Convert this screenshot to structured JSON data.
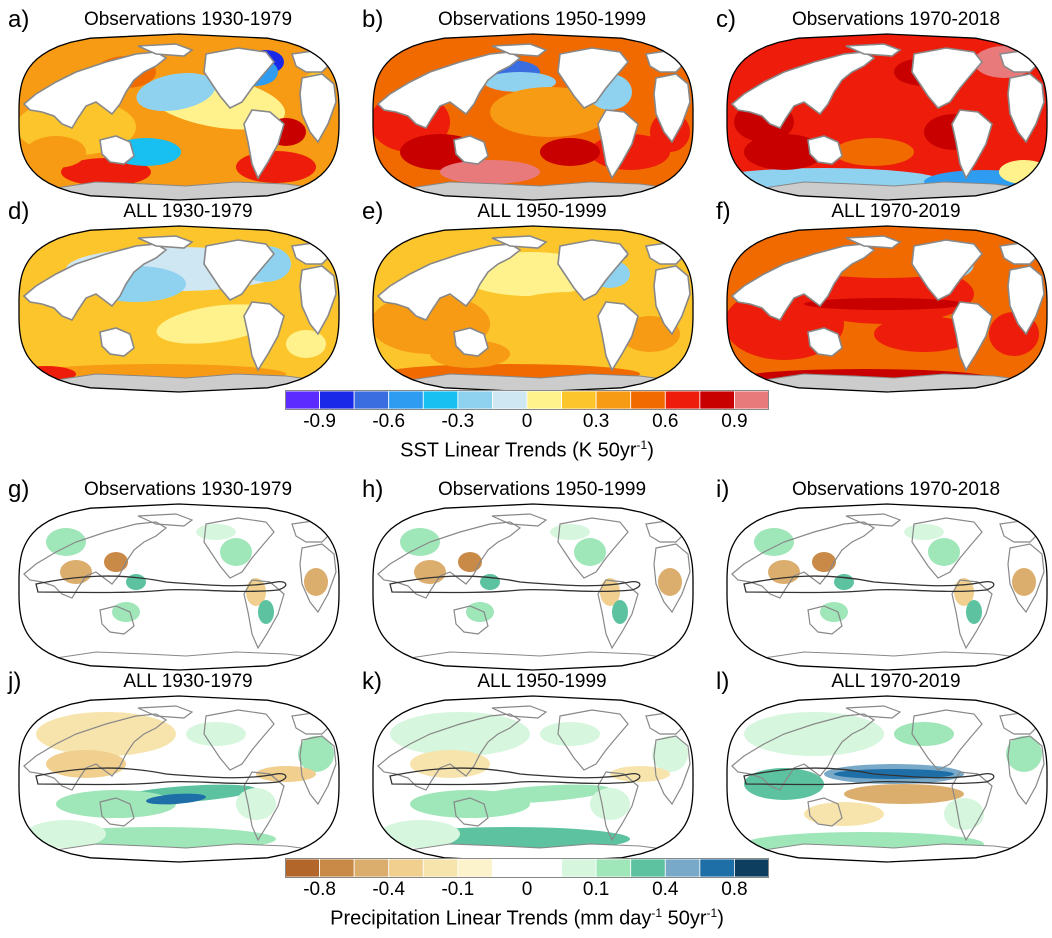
{
  "sst": {
    "panels": [
      {
        "letter": "a)",
        "title": "Observations 1930-1979",
        "style": "obs1930"
      },
      {
        "letter": "b)",
        "title": "Observations 1950-1999",
        "style": "obs1950"
      },
      {
        "letter": "c)",
        "title": "Observations 1970-2018",
        "style": "obs1970"
      },
      {
        "letter": "d)",
        "title": "ALL 1930-1979",
        "style": "all1930"
      },
      {
        "letter": "e)",
        "title": "ALL 1950-1999",
        "style": "all1950"
      },
      {
        "letter": "f)",
        "title": "ALL 1970-2019",
        "style": "all1970"
      }
    ],
    "colorbar": {
      "colors": [
        "#5b2bff",
        "#1a28e8",
        "#3a6ee0",
        "#2e9cf0",
        "#17c0f0",
        "#8fd2f0",
        "#cfe6f3",
        "#fff28c",
        "#fcc52c",
        "#f79a14",
        "#f06a00",
        "#ee1c0a",
        "#c80000",
        "#e97a7c"
      ],
      "ticks": [
        "-0.9",
        "-0.6",
        "-0.3",
        "0",
        "0.3",
        "0.6",
        "0.9"
      ],
      "title_main": "SST Linear Trends (K 50yr",
      "title_sup": "-1",
      "title_end": ")"
    }
  },
  "precip": {
    "panels": [
      {
        "letter": "g)",
        "title": "Observations 1930-1979",
        "style": "pobs"
      },
      {
        "letter": "h)",
        "title": "Observations 1950-1999",
        "style": "pobs"
      },
      {
        "letter": "i)",
        "title": "Observations 1970-2018",
        "style": "pobs"
      },
      {
        "letter": "j)",
        "title": "ALL 1930-1979",
        "style": "pall1930"
      },
      {
        "letter": "k)",
        "title": "ALL 1950-1999",
        "style": "pall1950"
      },
      {
        "letter": "l)",
        "title": "ALL 1970-2019",
        "style": "pall1970"
      }
    ],
    "colorbar": {
      "colors": [
        "#b3662a",
        "#c98a48",
        "#dcae6e",
        "#f0cf8f",
        "#f7e4ad",
        "#fcf3cc",
        "#ffffff",
        "#ffffff",
        "#d6f6de",
        "#9fe6b9",
        "#5cc2a0",
        "#78a9c8",
        "#1e6fa8",
        "#0d3e60"
      ],
      "ticks": [
        "-0.8",
        "-0.4",
        "-0.1",
        "0",
        "0.1",
        "0.4",
        "0.8"
      ],
      "title_main": "Precipitation Linear Trends (mm day",
      "title_sup1": "-1",
      "title_mid": " 50yr",
      "title_sup2": "-1",
      "title_end": ")"
    }
  }
}
